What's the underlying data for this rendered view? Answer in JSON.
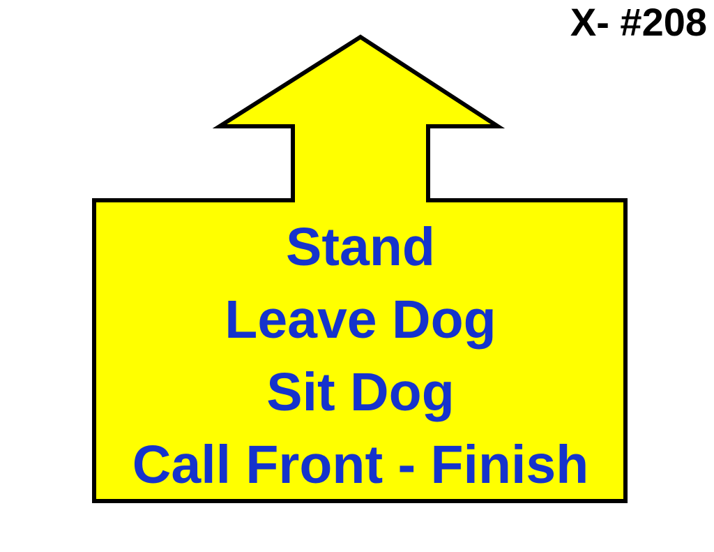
{
  "sign": {
    "number_label": "X- #208",
    "arrow_direction": "up",
    "colors": {
      "fill": "#ffff00",
      "outline": "#000000",
      "text": "#1533cc",
      "background": "#ffffff"
    },
    "steps": [
      "Stand",
      "Leave Dog",
      "Sit Dog",
      "Call Front - Finish"
    ]
  }
}
